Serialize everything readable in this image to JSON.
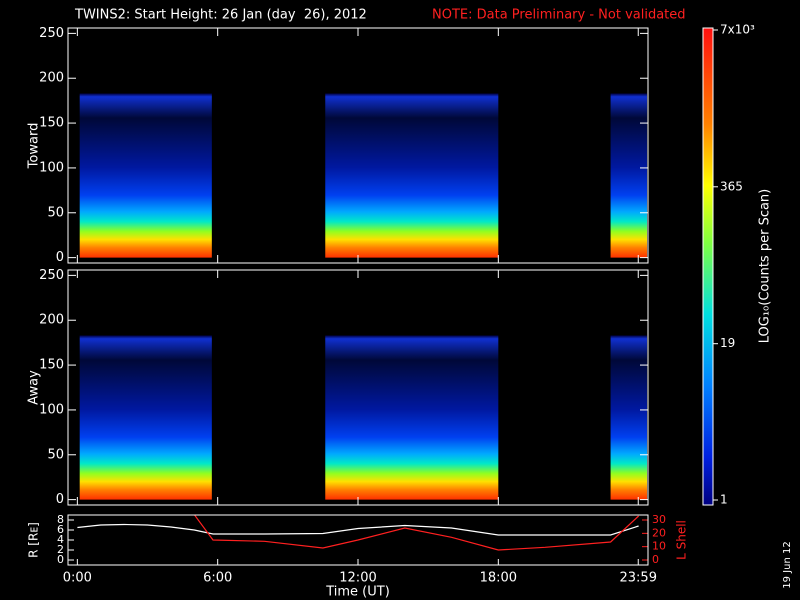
{
  "title": "TWINS2: Start Height: 26 Jan (day  26), 2012",
  "note": "NOTE: Data Preliminary - Not validated",
  "date_stamp": "19 Jun 12",
  "colorbar": {
    "label": "LOG₁₀(Counts per Scan)",
    "scale": "log",
    "lim": [
      1,
      7000
    ],
    "ticks": [
      1,
      19,
      365,
      {
        "value": 7000,
        "label": "7x10³"
      }
    ]
  },
  "chart_data": [
    {
      "type": "spectrogram",
      "ylabel": "Toward",
      "xlim": [
        -0.4,
        24.4
      ],
      "ylim": [
        -6,
        256
      ],
      "yticks": [
        0,
        50,
        100,
        150,
        200,
        250
      ],
      "max_height": 183,
      "intervals": [
        [
          0.1,
          5.75
        ],
        [
          10.6,
          18.0
        ],
        [
          22.8,
          24.4
        ]
      ]
    },
    {
      "type": "spectrogram",
      "ylabel": "Away",
      "xlim": [
        -0.4,
        24.4
      ],
      "ylim": [
        -6,
        256
      ],
      "yticks": [
        0,
        50,
        100,
        150,
        200,
        250
      ],
      "max_height": 183,
      "intervals": [
        [
          0.1,
          5.75
        ],
        [
          10.6,
          18.0
        ],
        [
          22.8,
          24.4
        ]
      ]
    },
    {
      "type": "line",
      "xlabel": "Time (UT)",
      "ylabel": "R [Rᴇ]",
      "y2label": "L Shell",
      "xlim": [
        -0.4,
        24.4
      ],
      "xticks": [
        {
          "value": 0,
          "label": "0:00"
        },
        {
          "value": 6,
          "label": "6:00"
        },
        {
          "value": 12,
          "label": "12:00"
        },
        {
          "value": 18,
          "label": "18:00"
        },
        {
          "value": 23.983,
          "label": "23:59"
        }
      ],
      "ylim": [
        -1,
        9
      ],
      "yticks": [
        0,
        2,
        4,
        6,
        8
      ],
      "y2lim": [
        -3.75,
        33.75
      ],
      "y2ticks": [
        0,
        10,
        20,
        30
      ],
      "x": [
        0,
        1,
        2,
        3,
        4,
        5,
        5.8,
        8,
        10.5,
        12,
        14,
        16,
        18,
        20,
        22.8,
        24
      ],
      "series": [
        {
          "color": "#ffffff",
          "values": [
            6.5,
            7,
            7.1,
            7,
            6.6,
            6,
            5.2,
            5.2,
            5.3,
            6.3,
            6.9,
            6.4,
            5,
            5,
            5,
            6.8
          ]
        },
        {
          "color": "#ff2020",
          "axis": "y2",
          "values": [
            null,
            null,
            null,
            null,
            null,
            34,
            15,
            14,
            9,
            15,
            24,
            17,
            7.5,
            9.5,
            13.5,
            33
          ]
        }
      ]
    }
  ]
}
